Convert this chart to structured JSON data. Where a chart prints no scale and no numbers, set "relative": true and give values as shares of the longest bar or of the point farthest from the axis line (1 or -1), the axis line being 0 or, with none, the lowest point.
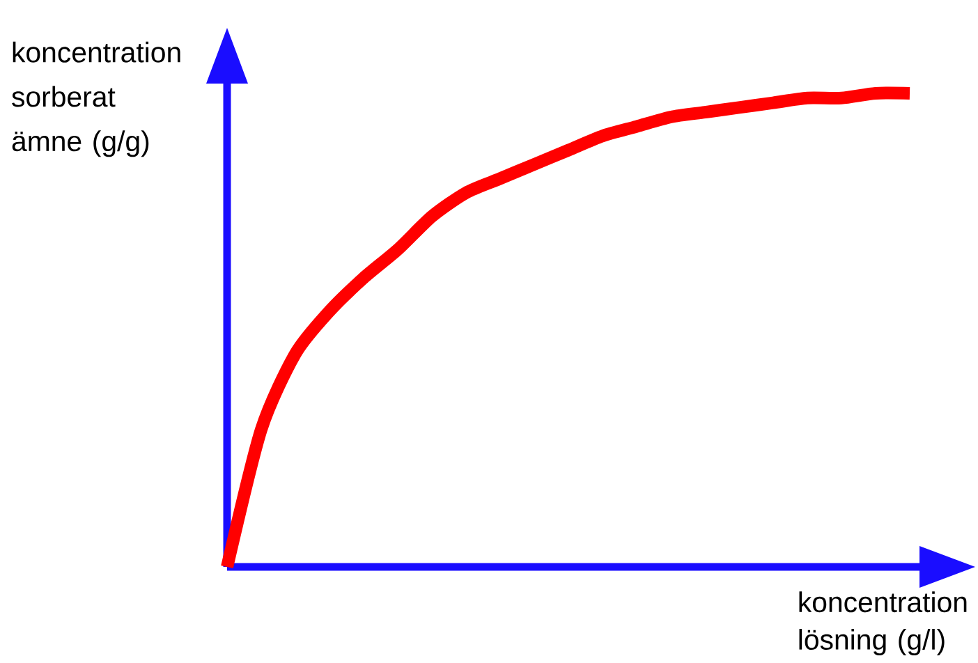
{
  "chart_data": {
    "type": "line",
    "relative": true,
    "xlabel": "koncentration lösning (g/l)",
    "ylabel": "koncentration sorberat ämne (g/g)",
    "categories": [
      null,
      null,
      null,
      null,
      null,
      null,
      null,
      null,
      null,
      null,
      null,
      null,
      null,
      null,
      null,
      null,
      null,
      null,
      null,
      null,
      null
    ],
    "series": [
      {
        "color": "#ff0000",
        "values": [
          0,
          0.29,
          0.45,
          0.54,
          0.61,
          0.67,
          0.74,
          0.79,
          0.82,
          0.85,
          0.88,
          0.91,
          0.93,
          0.95,
          0.96,
          0.97,
          0.98,
          0.99,
          0.99,
          1.0,
          1.0
        ]
      }
    ],
    "marker": "none",
    "line_style": "solid"
  }
}
